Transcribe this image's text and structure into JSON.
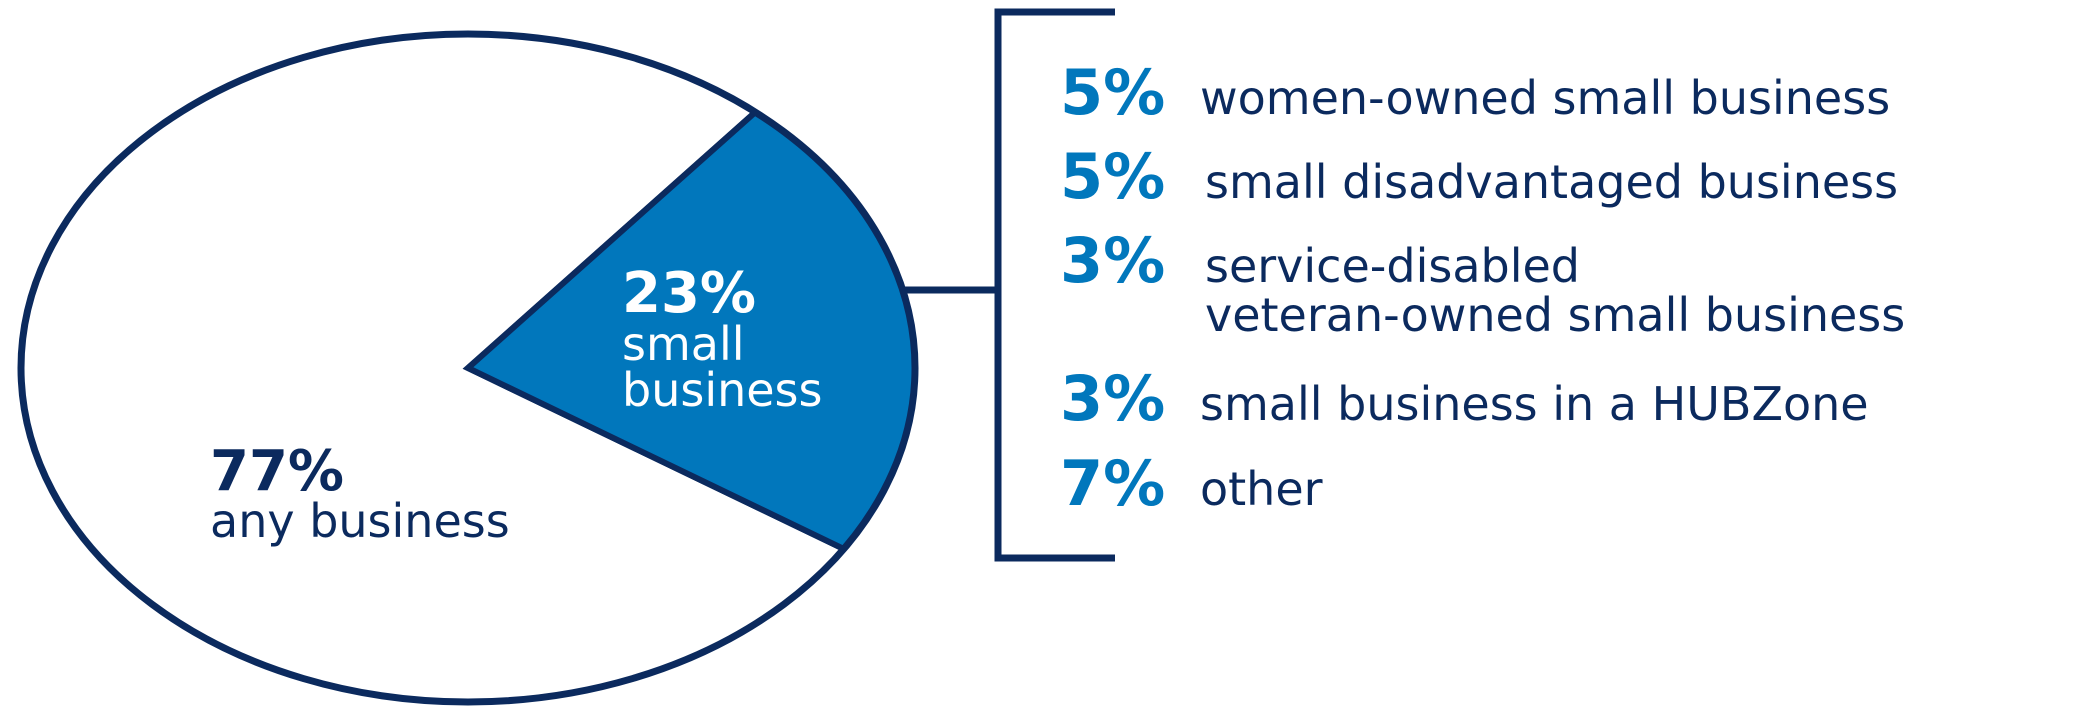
{
  "colors": {
    "navy": "#0b2a5e",
    "blue": "#0177bc",
    "white": "#ffffff"
  },
  "chart_data": {
    "type": "pie",
    "slices": [
      {
        "value": 77,
        "pct_label": "77%",
        "label_lines": [
          "any business"
        ],
        "color": "#ffffff"
      },
      {
        "value": 23,
        "pct_label": "23%",
        "label_lines": [
          "small",
          "business"
        ],
        "color": "#0177bc"
      }
    ],
    "breakdown": {
      "of_slice": "small business",
      "items": [
        {
          "value": 5,
          "pct_label": "5%",
          "lines": [
            "women-owned small business"
          ]
        },
        {
          "value": 5,
          "pct_label": "5%",
          "lines": [
            "small disadvantaged business"
          ]
        },
        {
          "value": 3,
          "pct_label": "3%",
          "lines": [
            "service-disabled",
            "veteran-owned small business"
          ]
        },
        {
          "value": 3,
          "pct_label": "3%",
          "lines": [
            "small business in a HUBZone"
          ]
        },
        {
          "value": 7,
          "pct_label": "7%",
          "lines": [
            "other"
          ]
        }
      ]
    }
  }
}
